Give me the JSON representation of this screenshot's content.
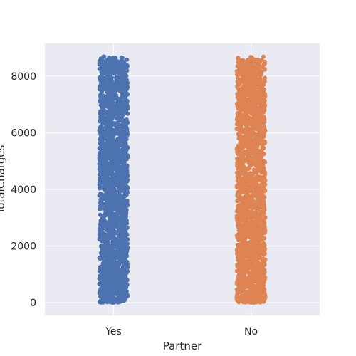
{
  "chart_data": {
    "type": "scatter",
    "subtype": "strip",
    "xlabel": "Partner",
    "ylabel": "TotalCharges",
    "categories": [
      "Yes",
      "No"
    ],
    "ylim": [
      -450,
      9150
    ],
    "yticks": [
      0,
      2000,
      4000,
      6000,
      8000
    ],
    "grid": true,
    "series": [
      {
        "category": "Yes",
        "min": 0,
        "max": 8690,
        "color": "#4c72b0"
      },
      {
        "category": "No",
        "min": 0,
        "max": 8690,
        "color": "#dd8452"
      }
    ]
  }
}
